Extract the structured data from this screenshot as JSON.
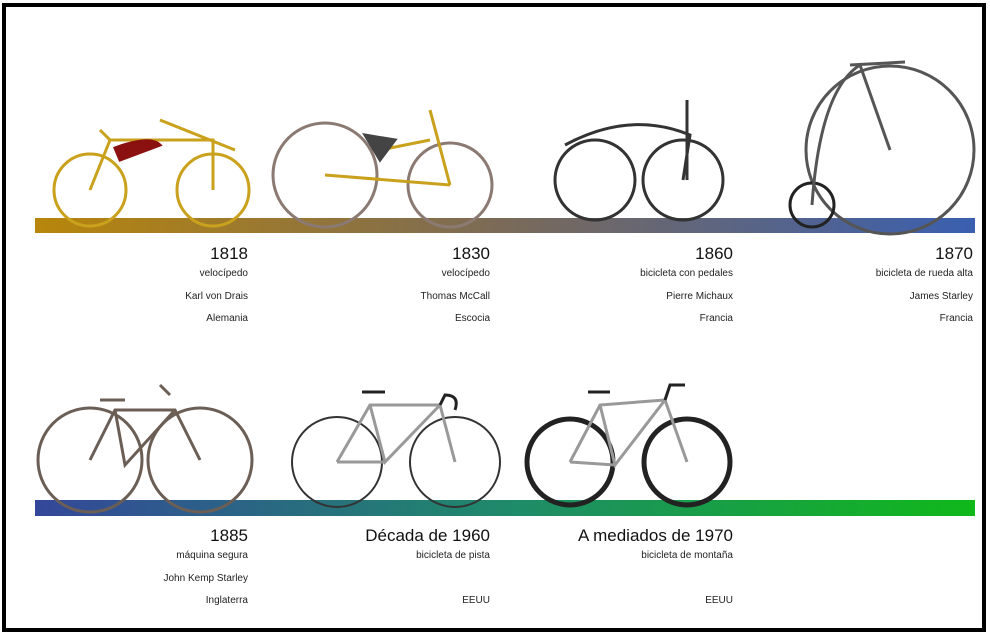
{
  "timeline": {
    "rows": [
      {
        "items": [
          {
            "year": "1818",
            "name": "velocípedo",
            "inventor": "Karl von Drais",
            "country": "Alemania"
          },
          {
            "year": "1830",
            "name": "velocípedo",
            "inventor": "Thomas McCall",
            "country": "Escocia"
          },
          {
            "year": "1860",
            "name": "bicicleta con pedales",
            "inventor": "Pierre Michaux",
            "country": "Francia"
          },
          {
            "year": "1870",
            "name": "bicicleta de rueda alta",
            "inventor": "James Starley",
            "country": "Francia"
          }
        ]
      },
      {
        "items": [
          {
            "year": "1885",
            "name": "máquina segura",
            "inventor": "John Kemp Starley",
            "country": "Inglaterra"
          },
          {
            "year": "Década de 1960",
            "name": "bicicleta de pista",
            "country": "EEUU"
          },
          {
            "year": "A mediados de 1970",
            "name": "bicicleta de montaña",
            "country": "EEUU"
          }
        ]
      }
    ]
  }
}
